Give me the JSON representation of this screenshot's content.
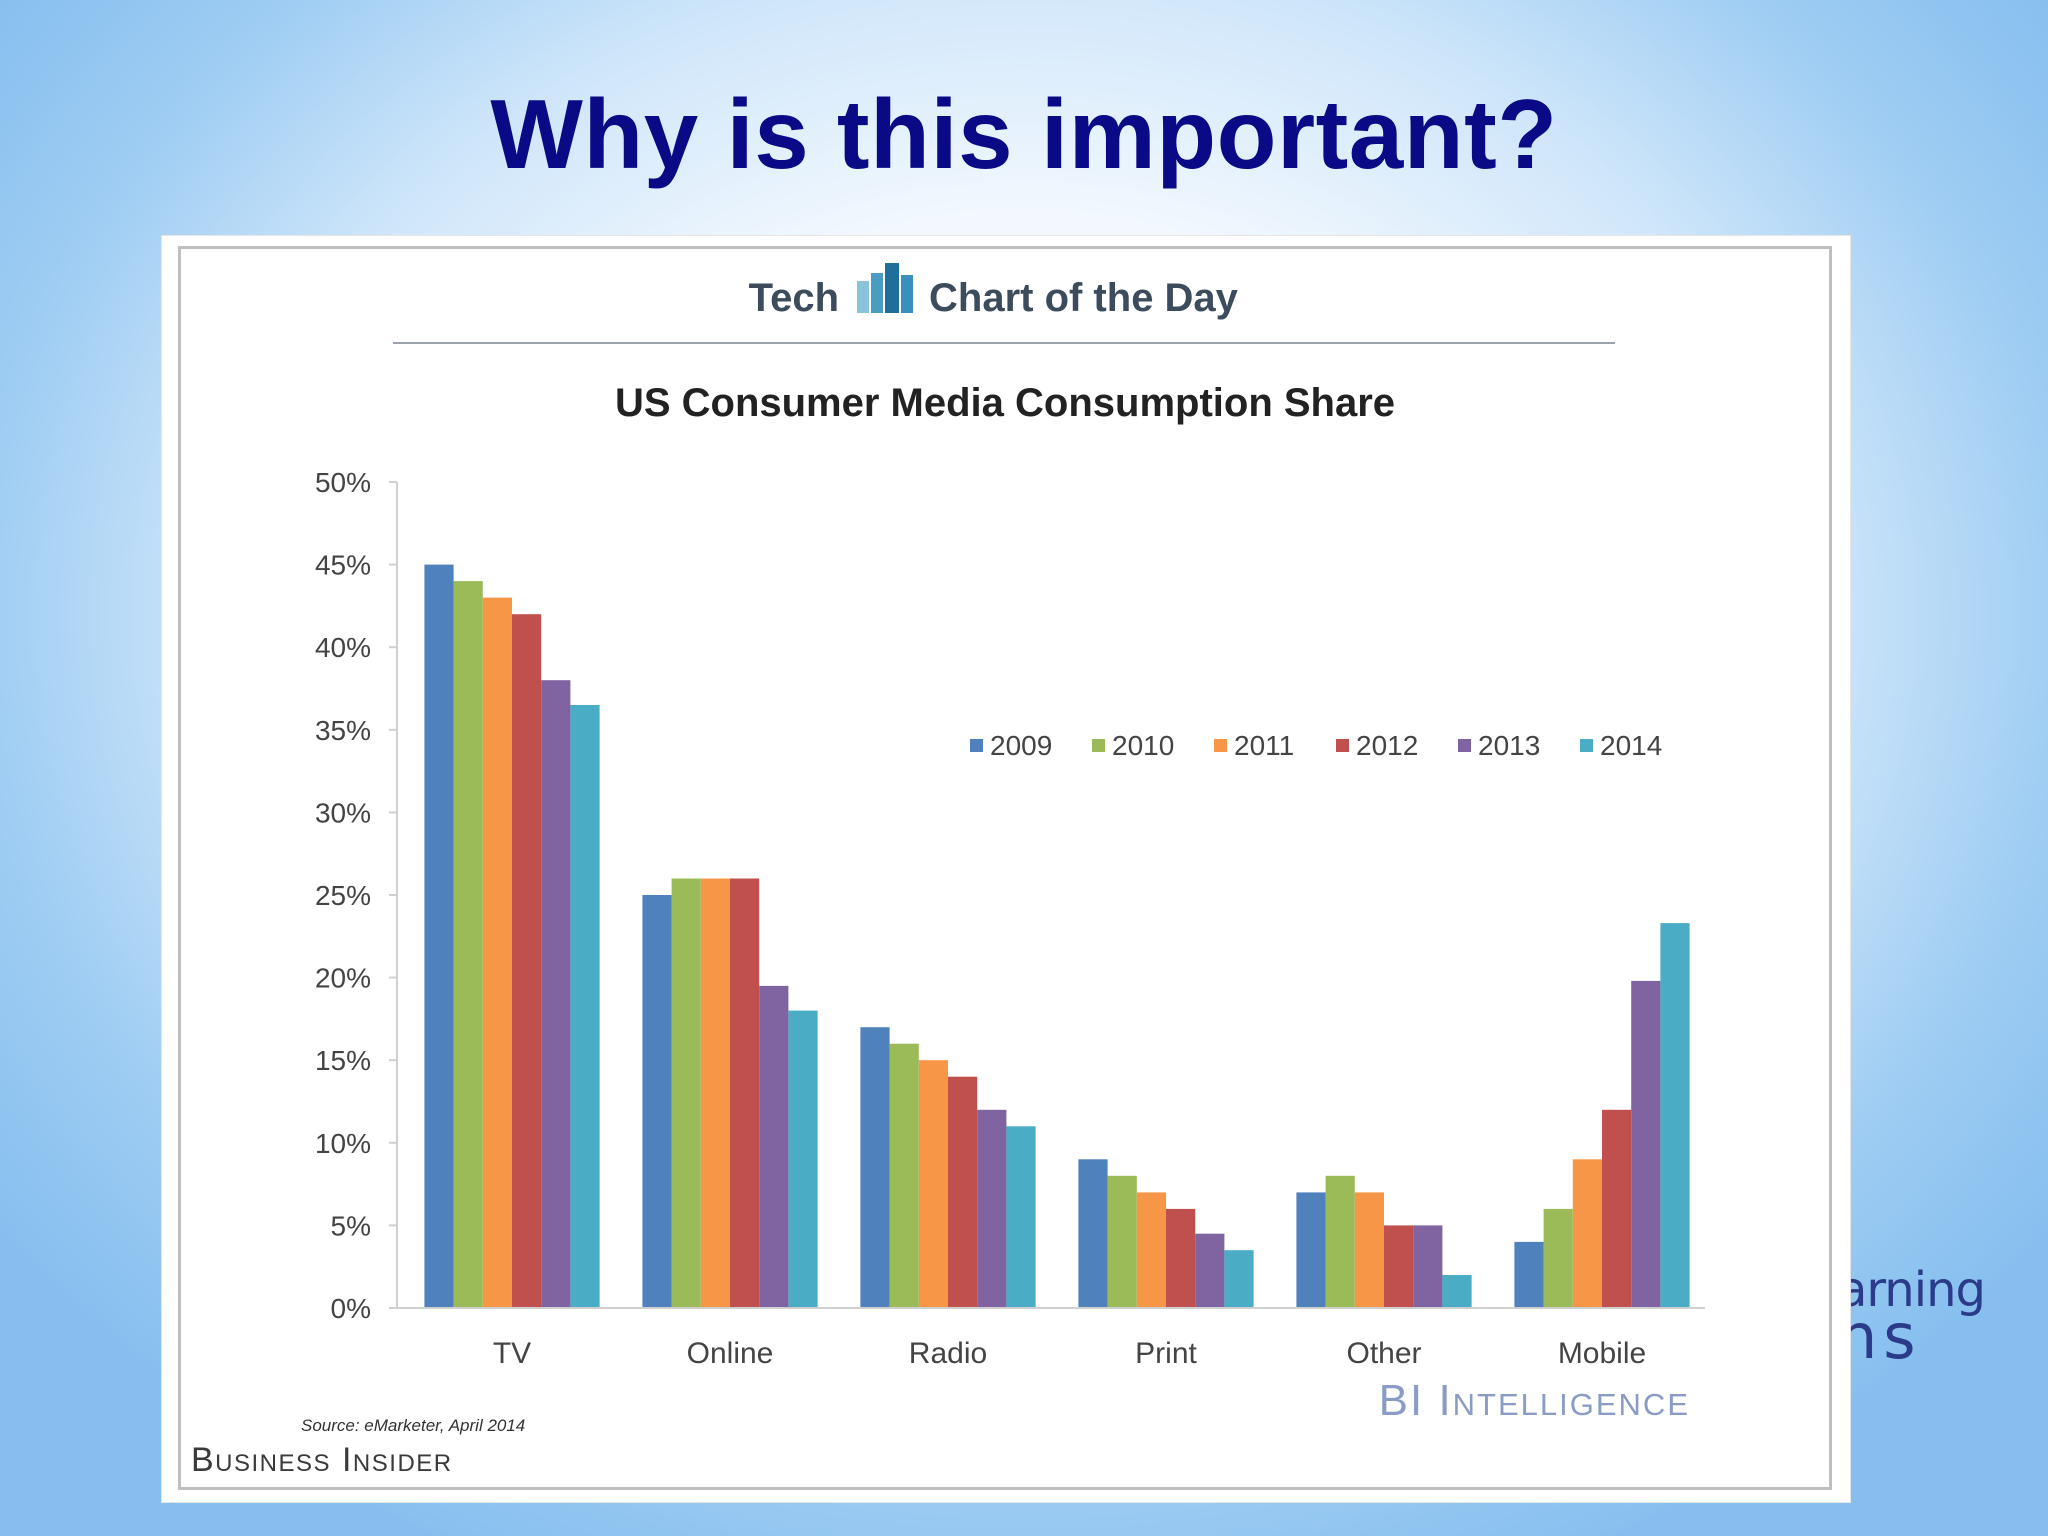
{
  "slide": {
    "title": "Why is this important?",
    "brand_fragment_line1": "arning",
    "brand_fragment_line2": "ns"
  },
  "chart_header": {
    "tech_label": "Tech",
    "series_label": "Chart of the Day",
    "source": "Source: eMarketer, April 2014",
    "publisher": "Business Insider",
    "watermark": "BI Intelligence"
  },
  "colors": {
    "2009": "#4f81bd",
    "2010": "#9bbb59",
    "2011": "#f79646",
    "2012": "#c0504d",
    "2013": "#8064a2",
    "2014": "#4bacc6",
    "title": "#0a0a86"
  },
  "chart_data": {
    "type": "bar",
    "title": "US Consumer Media Consumption Share",
    "xlabel": "",
    "ylabel": "",
    "ylim": [
      0,
      50
    ],
    "yticks": [
      "0%",
      "5%",
      "10%",
      "15%",
      "20%",
      "25%",
      "30%",
      "35%",
      "40%",
      "45%",
      "50%"
    ],
    "categories": [
      "TV",
      "Online",
      "Radio",
      "Print",
      "Other",
      "Mobile"
    ],
    "legend_position": "upper-right",
    "grid": false,
    "series": [
      {
        "name": "2009",
        "values": [
          45,
          25,
          17,
          9,
          7,
          4
        ]
      },
      {
        "name": "2010",
        "values": [
          44,
          26,
          16,
          8,
          8,
          6
        ]
      },
      {
        "name": "2011",
        "values": [
          43,
          26,
          15,
          7,
          7,
          9
        ]
      },
      {
        "name": "2012",
        "values": [
          42,
          26,
          14,
          6,
          5,
          12
        ]
      },
      {
        "name": "2013",
        "values": [
          38,
          19.5,
          12,
          4.5,
          5,
          19.8
        ]
      },
      {
        "name": "2014",
        "values": [
          36.5,
          18,
          11,
          3.5,
          2,
          23.3
        ]
      }
    ]
  }
}
